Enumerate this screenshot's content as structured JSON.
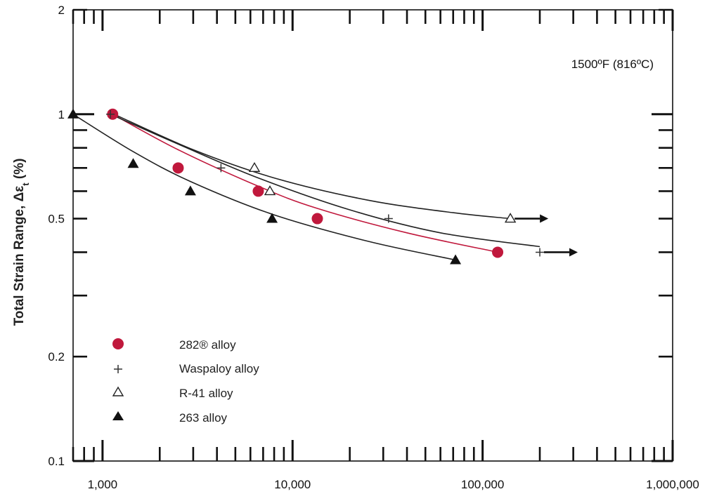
{
  "chart_data": {
    "type": "scatter",
    "title": "",
    "xlabel": "",
    "ylabel": "Total Strain Range, Δε",
    "ylabel_subscript": "t",
    "ylabel_unit": " (%)",
    "x_scale": "log",
    "y_scale": "log",
    "xlim": [
      700,
      1000000
    ],
    "ylim": [
      0.1,
      2
    ],
    "x_tick_labels": [
      {
        "value": 1000,
        "label": "1,000"
      },
      {
        "value": 10000,
        "label": "10,000"
      },
      {
        "value": 100000,
        "label": "100,000"
      },
      {
        "value": 1000000,
        "label": "1,000,000"
      }
    ],
    "y_tick_labels": [
      {
        "value": 0.1,
        "label": "0.1"
      },
      {
        "value": 0.2,
        "label": "0.2"
      },
      {
        "value": 0.5,
        "label": "0.5"
      },
      {
        "value": 1,
        "label": "1"
      },
      {
        "value": 2,
        "label": "2"
      }
    ],
    "annotation": "1500ºF (816ºC)",
    "grid": false,
    "legend_position": "bottom-left",
    "series": [
      {
        "name": "282® alloy",
        "marker": "filled-circle",
        "color": "#c0183c",
        "points": [
          [
            1130,
            1.0
          ],
          [
            2500,
            0.7
          ],
          [
            6600,
            0.6
          ],
          [
            13500,
            0.5
          ],
          [
            120000,
            0.4
          ]
        ],
        "fit": [
          [
            1130,
            1.0
          ],
          [
            2500,
            0.79
          ],
          [
            6600,
            0.62
          ],
          [
            13500,
            0.535
          ],
          [
            40000,
            0.455
          ],
          [
            120000,
            0.4
          ]
        ],
        "runout": false
      },
      {
        "name": "Waspaloy alloy",
        "marker": "plus",
        "color": "#222222",
        "points": [
          [
            1100,
            1.0
          ],
          [
            4200,
            0.7
          ],
          [
            32000,
            0.5
          ],
          [
            200000,
            0.4
          ]
        ],
        "fit": [
          [
            1100,
            1.0
          ],
          [
            2500,
            0.82
          ],
          [
            6600,
            0.655
          ],
          [
            20000,
            0.53
          ],
          [
            60000,
            0.455
          ],
          [
            200000,
            0.415
          ]
        ],
        "runout": true
      },
      {
        "name": "R-41 alloy",
        "marker": "open-triangle",
        "color": "#222222",
        "points": [
          [
            6300,
            0.7
          ],
          [
            7600,
            0.6
          ],
          [
            140000,
            0.5
          ]
        ],
        "fit": [
          [
            1150,
            1.0
          ],
          [
            3000,
            0.79
          ],
          [
            8000,
            0.655
          ],
          [
            25000,
            0.565
          ],
          [
            70000,
            0.52
          ],
          [
            140000,
            0.5
          ]
        ],
        "runout": true
      },
      {
        "name": "263 alloy",
        "marker": "filled-triangle",
        "color": "#111111",
        "points": [
          [
            700,
            1.0
          ],
          [
            1450,
            0.72
          ],
          [
            2900,
            0.6
          ],
          [
            7800,
            0.5
          ],
          [
            72000,
            0.38
          ]
        ],
        "fit": [
          [
            700,
            1.0
          ],
          [
            1450,
            0.78
          ],
          [
            2900,
            0.64
          ],
          [
            7800,
            0.515
          ],
          [
            25000,
            0.43
          ],
          [
            72000,
            0.38
          ]
        ],
        "runout": false
      }
    ]
  },
  "legend": [
    {
      "label": "282® alloy",
      "color": "#c0183c",
      "marker": "filled-circle"
    },
    {
      "label": "Waspaloy alloy",
      "color": "#222222",
      "marker": "plus"
    },
    {
      "label": "R-41 alloy",
      "color": "#222222",
      "marker": "open-triangle"
    },
    {
      "label": "263 alloy",
      "color": "#222222",
      "marker": "filled-triangle"
    }
  ]
}
